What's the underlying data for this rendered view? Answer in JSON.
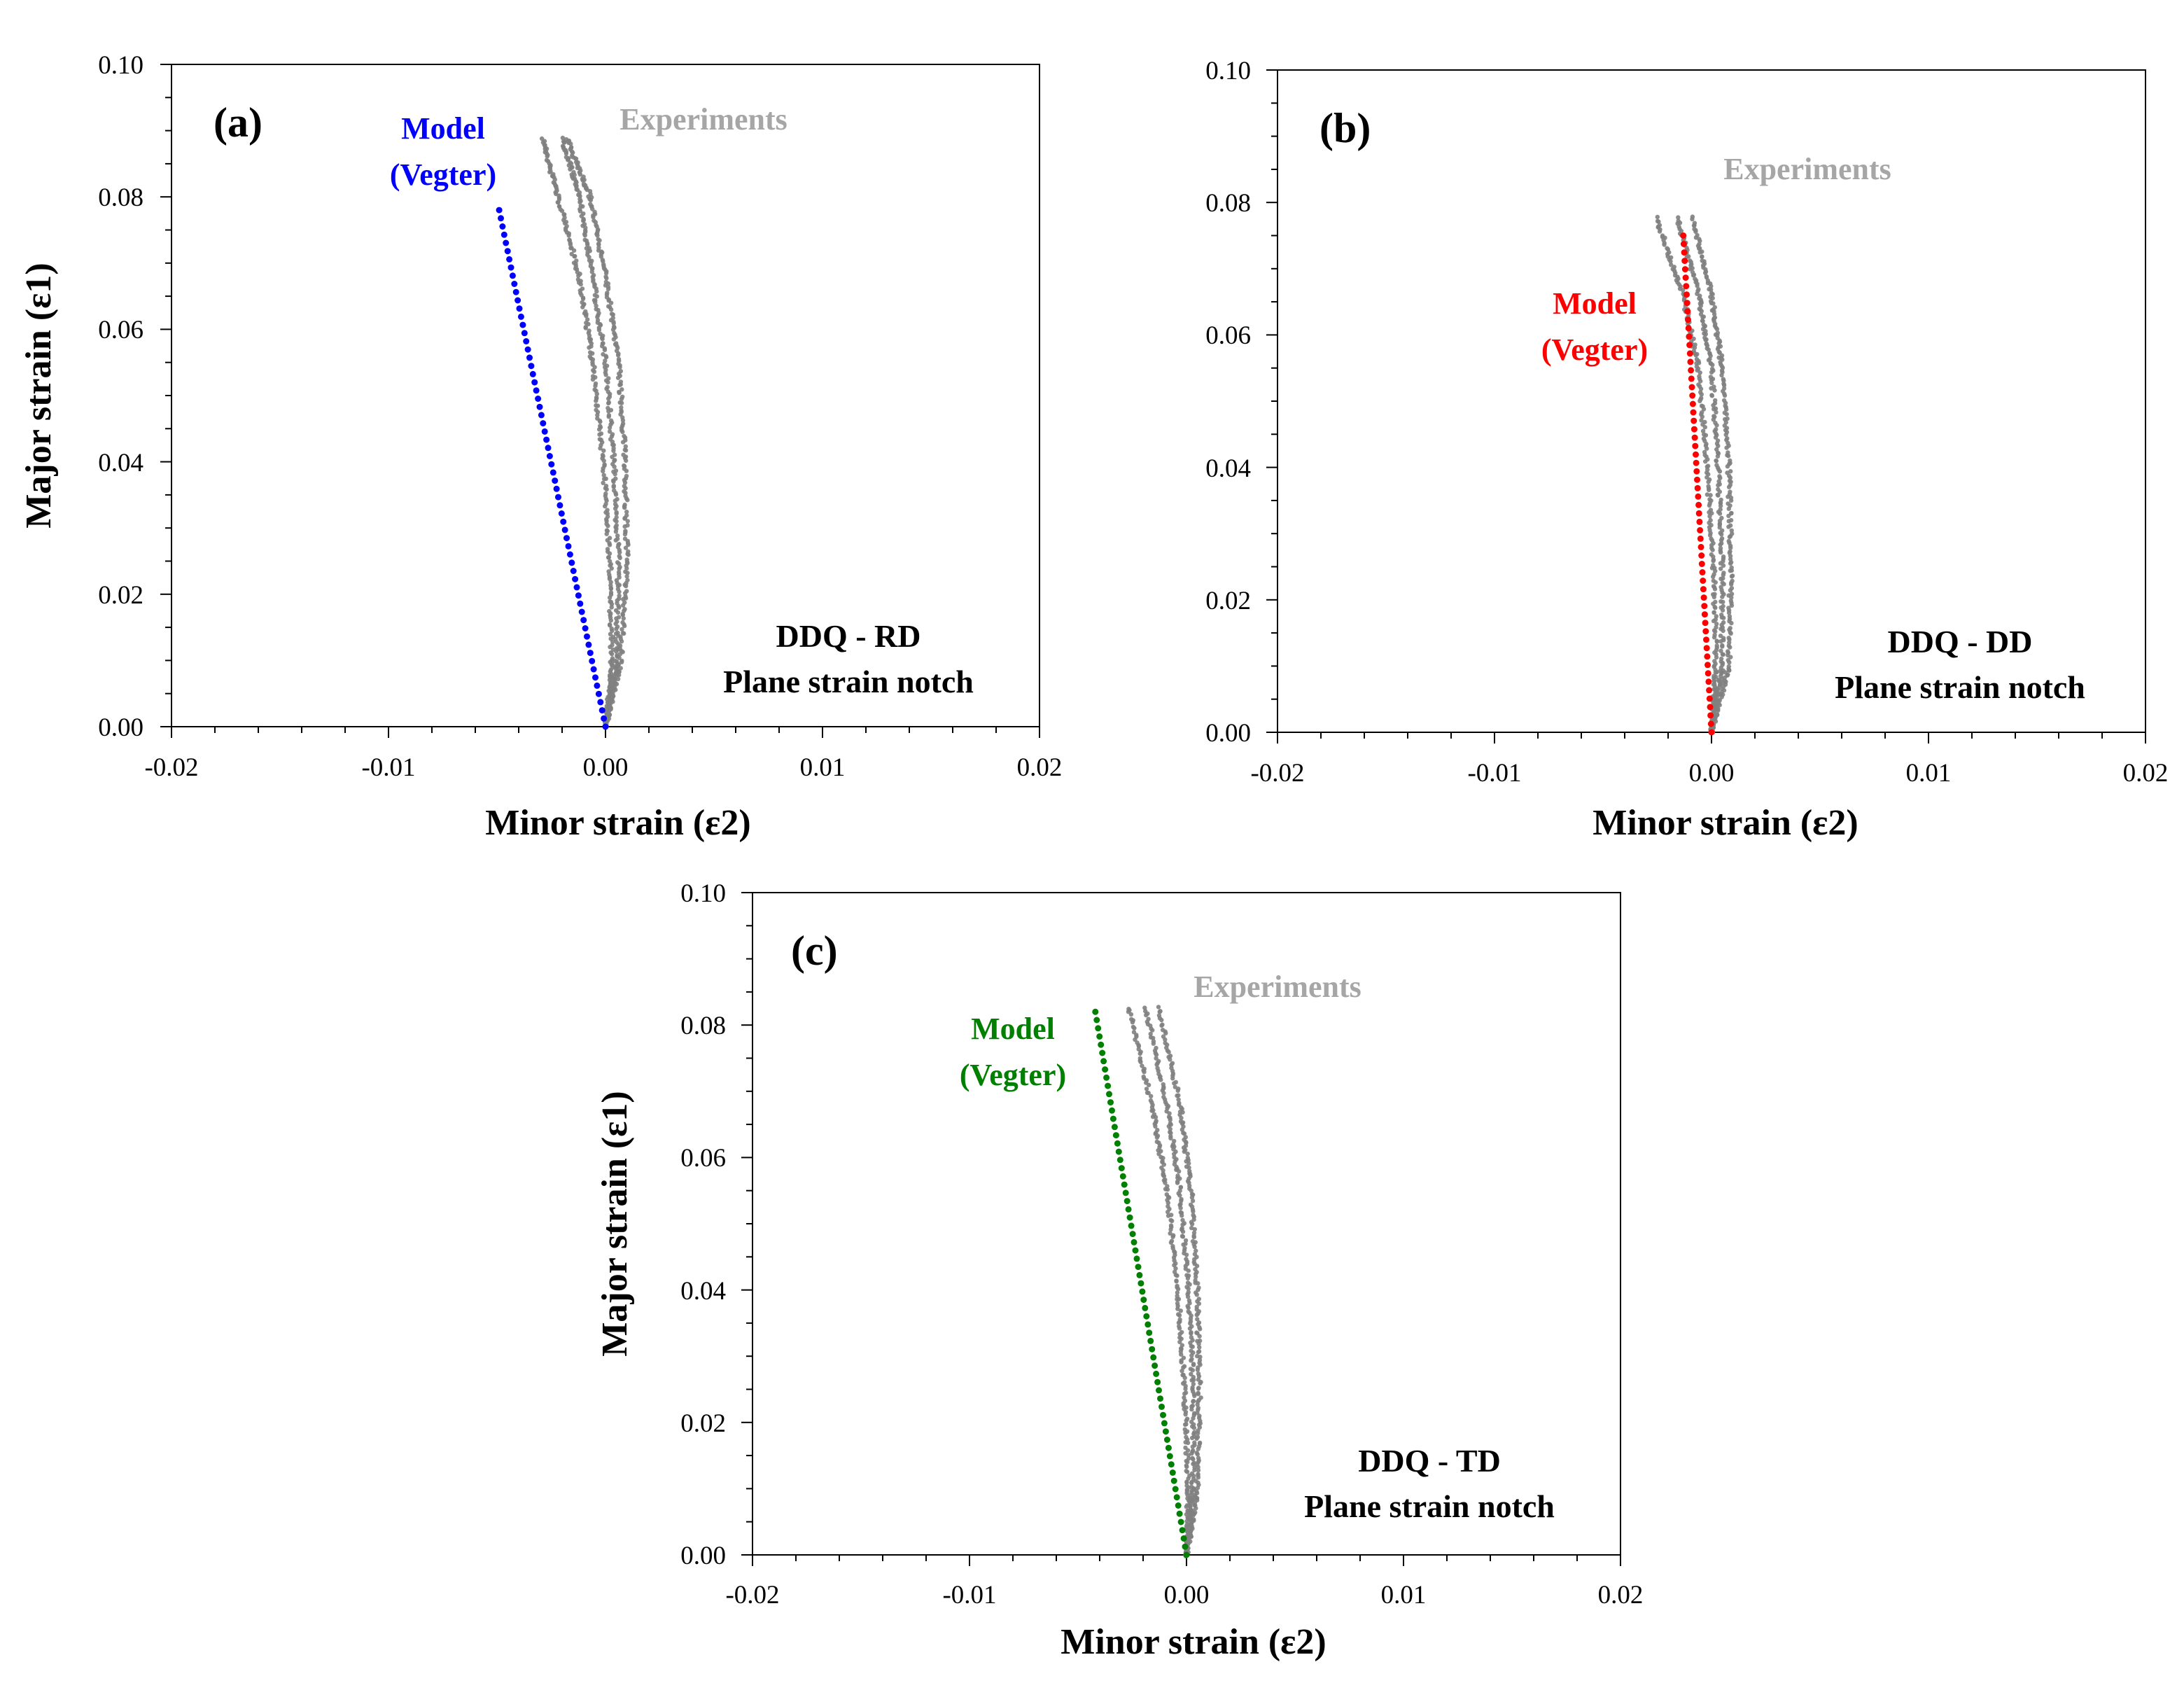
{
  "chart_data": [
    {
      "type": "scatter",
      "panel_label": "(a)",
      "xlabel": "Minor strain (ε2)",
      "ylabel": "Major strain (ε1)",
      "xlim": [
        -0.02,
        0.02
      ],
      "ylim": [
        0.0,
        0.1
      ],
      "x_ticks": [
        "-0.02",
        "-0.01",
        "0.00",
        "0.01",
        "0.02"
      ],
      "y_ticks": [
        "0.00",
        "0.02",
        "0.04",
        "0.06",
        "0.08",
        "0.10"
      ],
      "annotation_lines": [
        "DDQ - RD",
        "Plane strain notch"
      ],
      "experiments_label": "Experiments",
      "model_label_lines": [
        "Model",
        "(Vegter)"
      ],
      "series": [
        {
          "name": "Experiments",
          "color": "#808080",
          "curves": [
            {
              "x": [
                0.0,
                0.0003,
                0.0002,
                -0.0001,
                -0.0006,
                -0.0012,
                -0.0022,
                -0.0029
              ],
              "y": [
                0.0,
                0.01,
                0.025,
                0.04,
                0.055,
                0.068,
                0.08,
                0.089
              ]
            },
            {
              "x": [
                0.0,
                0.0005,
                0.0006,
                0.0004,
                0.0,
                -0.0006,
                -0.0012,
                -0.002
              ],
              "y": [
                0.0,
                0.01,
                0.025,
                0.04,
                0.055,
                0.068,
                0.08,
                0.089
              ]
            },
            {
              "x": [
                0.0,
                0.0007,
                0.001,
                0.0009,
                0.0006,
                0.0,
                -0.0007,
                -0.0018
              ],
              "y": [
                0.0,
                0.01,
                0.025,
                0.04,
                0.055,
                0.068,
                0.08,
                0.089
              ]
            }
          ]
        },
        {
          "name": "Model (Vegter)",
          "color": "#0000ff",
          "x": [
            0.0,
            -0.0049
          ],
          "y": [
            0.0,
            0.078
          ]
        }
      ]
    },
    {
      "type": "scatter",
      "panel_label": "(b)",
      "xlabel": "Minor strain (ε2)",
      "ylabel": "",
      "xlim": [
        -0.02,
        0.02
      ],
      "ylim": [
        0.0,
        0.1
      ],
      "x_ticks": [
        "-0.02",
        "-0.01",
        "0.00",
        "0.01",
        "0.02"
      ],
      "y_ticks": [
        "0.00",
        "0.02",
        "0.04",
        "0.06",
        "0.08",
        "0.10"
      ],
      "annotation_lines": [
        "DDQ - DD",
        "Plane strain notch"
      ],
      "experiments_label": "Experiments",
      "model_label_lines": [
        "Model",
        "(Vegter)"
      ],
      "series": [
        {
          "name": "Experiments",
          "color": "#808080",
          "curves": [
            {
              "x": [
                0.0,
                0.0002,
                0.0001,
                -0.0002,
                -0.0006,
                -0.0013,
                -0.0026
              ],
              "y": [
                0.0,
                0.01,
                0.025,
                0.04,
                0.055,
                0.066,
                0.078
              ]
            },
            {
              "x": [
                0.0,
                0.0005,
                0.0005,
                0.0003,
                0.0,
                -0.0006,
                -0.0016
              ],
              "y": [
                0.0,
                0.01,
                0.025,
                0.04,
                0.055,
                0.066,
                0.078
              ]
            },
            {
              "x": [
                0.0,
                0.0008,
                0.0009,
                0.0008,
                0.0005,
                0.0,
                -0.0009
              ],
              "y": [
                0.0,
                0.01,
                0.025,
                0.04,
                0.055,
                0.066,
                0.078
              ]
            }
          ]
        },
        {
          "name": "Model (Vegter)",
          "color": "#ff0000",
          "x": [
            0.0,
            -0.0013
          ],
          "y": [
            0.0,
            0.075
          ]
        }
      ]
    },
    {
      "type": "scatter",
      "panel_label": "(c)",
      "xlabel": "Minor strain (ε2)",
      "ylabel": "Major strain (ε1)",
      "xlim": [
        -0.02,
        0.02
      ],
      "ylim": [
        0.0,
        0.1
      ],
      "x_ticks": [
        "-0.02",
        "-0.01",
        "0.00",
        "0.01",
        "0.02"
      ],
      "y_ticks": [
        "0.00",
        "0.02",
        "0.04",
        "0.06",
        "0.08",
        "0.10"
      ],
      "annotation_lines": [
        "DDQ - TD",
        "Plane strain notch"
      ],
      "experiments_label": "Experiments",
      "model_label_lines": [
        "Model",
        "(Vegter)"
      ],
      "series": [
        {
          "name": "Experiments",
          "color": "#808080",
          "curves": [
            {
              "x": [
                0.0,
                0.0001,
                -0.0001,
                -0.0004,
                -0.0009,
                -0.0016,
                -0.0027
              ],
              "y": [
                0.0,
                0.01,
                0.025,
                0.04,
                0.055,
                0.068,
                0.083
              ]
            },
            {
              "x": [
                0.0,
                0.0003,
                0.0003,
                0.0001,
                -0.0003,
                -0.0009,
                -0.0019
              ],
              "y": [
                0.0,
                0.01,
                0.025,
                0.04,
                0.055,
                0.068,
                0.083
              ]
            },
            {
              "x": [
                0.0,
                0.0005,
                0.0006,
                0.0005,
                0.0002,
                -0.0003,
                -0.0013
              ],
              "y": [
                0.0,
                0.01,
                0.025,
                0.04,
                0.055,
                0.068,
                0.083
              ]
            }
          ]
        },
        {
          "name": "Model (Vegter)",
          "color": "#008000",
          "x": [
            0.0,
            -0.0042
          ],
          "y": [
            0.0,
            0.082
          ]
        }
      ]
    }
  ]
}
